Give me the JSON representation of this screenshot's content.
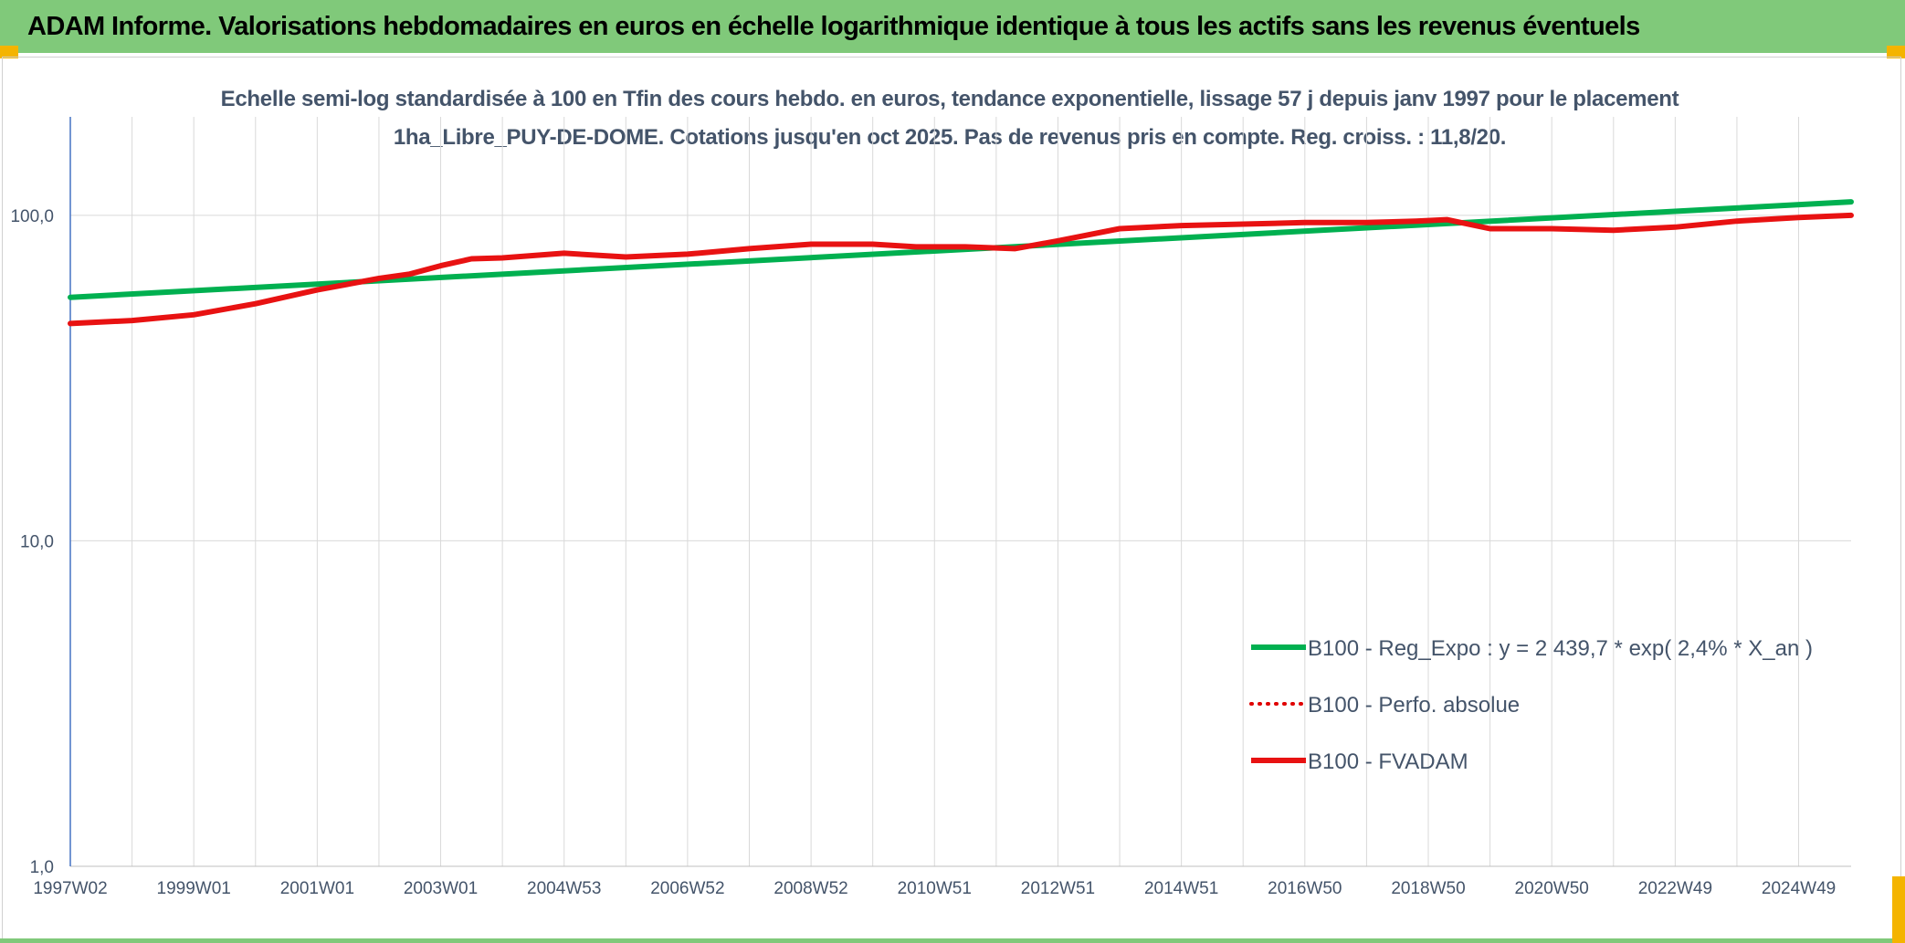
{
  "header": {
    "title": "ADAM Informe. Valorisations hebdomadaires en euros en échelle logarithmique identique à tous les actifs sans les revenus éventuels"
  },
  "chart_data": {
    "type": "line",
    "title": "Echelle semi-log standardisée à 100 en Tfin des cours hebdo. en euros, tendance exponentielle, lissage 57 j depuis janv 1997 pour le placement 1ha_Libre_PUY-DE-DOME. Cotations jusqu'en oct 2025. Pas de revenus pris en compte. Reg. croiss. : 11,8/20.",
    "y_scale": "log",
    "ylim": [
      1,
      190
    ],
    "y_ticks": [
      {
        "value": 1,
        "label": "1,0"
      },
      {
        "value": 10,
        "label": "10,0"
      },
      {
        "value": 100,
        "label": "100,0"
      }
    ],
    "x_range": [
      1997.0,
      2025.85
    ],
    "x_ticks": [
      {
        "x": 1997.0,
        "label": "1997W02"
      },
      {
        "x": 1999.0,
        "label": "1999W01"
      },
      {
        "x": 2001.0,
        "label": "2001W01"
      },
      {
        "x": 2003.0,
        "label": "2003W01"
      },
      {
        "x": 2005.0,
        "label": "2004W53"
      },
      {
        "x": 2007.0,
        "label": "2006W52"
      },
      {
        "x": 2009.0,
        "label": "2008W52"
      },
      {
        "x": 2011.0,
        "label": "2010W51"
      },
      {
        "x": 2013.0,
        "label": "2012W51"
      },
      {
        "x": 2015.0,
        "label": "2014W51"
      },
      {
        "x": 2017.0,
        "label": "2016W50"
      },
      {
        "x": 2019.0,
        "label": "2018W50"
      },
      {
        "x": 2021.0,
        "label": "2020W50"
      },
      {
        "x": 2023.0,
        "label": "2022W49"
      },
      {
        "x": 2025.0,
        "label": "2024W49"
      }
    ],
    "grid": true,
    "legend_position": "lower-right",
    "series": [
      {
        "name": "B100 - Reg_Expo : y = 2 439,7 * exp( 2,4% *  X_an )",
        "color": "#00b050",
        "style": "solid",
        "x": [
          1997.0,
          2025.85
        ],
        "y": [
          56.0,
          110.0
        ]
      },
      {
        "name": "B100 - Perfo. absolue",
        "color": "#e00000",
        "style": "dotted",
        "x": [],
        "y": []
      },
      {
        "name": "B100 - FVADAM",
        "color": "#e81212",
        "style": "solid",
        "x": [
          1997.0,
          1998.0,
          1999.0,
          2000.0,
          2001.0,
          2002.0,
          2002.5,
          2003.0,
          2003.5,
          2004.0,
          2005.0,
          2006.0,
          2007.0,
          2008.0,
          2009.0,
          2010.0,
          2010.7,
          2011.5,
          2012.3,
          2013.0,
          2014.0,
          2015.0,
          2016.0,
          2017.0,
          2018.0,
          2018.8,
          2019.3,
          2020.0,
          2021.0,
          2022.0,
          2023.0,
          2024.0,
          2025.0,
          2025.85
        ],
        "y": [
          46.5,
          47.5,
          49.5,
          53.5,
          59.0,
          64.0,
          66.0,
          70.0,
          73.5,
          74.0,
          76.5,
          74.5,
          76.0,
          79.0,
          81.5,
          81.5,
          80.0,
          80.0,
          79.0,
          83.5,
          91.0,
          93.0,
          94.0,
          95.0,
          95.0,
          96.0,
          97.0,
          91.0,
          91.0,
          90.0,
          92.0,
          96.0,
          98.5,
          100.0
        ]
      }
    ]
  }
}
